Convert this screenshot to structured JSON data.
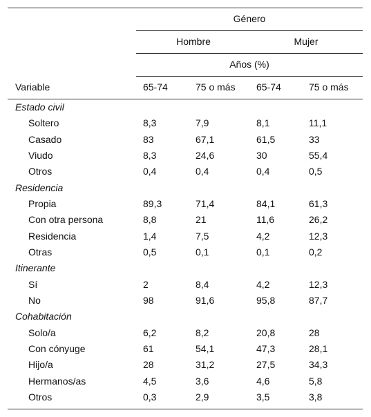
{
  "header": {
    "title": "Género",
    "groups": [
      "Hombre",
      "Mujer"
    ],
    "subtitle": "Años (%)",
    "columns": [
      "Variable",
      "65-74",
      "75 o más",
      "65-74",
      "75 o más"
    ]
  },
  "table": {
    "sections": [
      {
        "label": "Estado civil",
        "rows": [
          {
            "label": "Soltero",
            "values": [
              "8,3",
              "7,9",
              "8,1",
              "11,1"
            ]
          },
          {
            "label": "Casado",
            "values": [
              "83",
              "67,1",
              "61,5",
              "33"
            ]
          },
          {
            "label": "Viudo",
            "values": [
              "8,3",
              "24,6",
              "30",
              "55,4"
            ]
          },
          {
            "label": "Otros",
            "values": [
              "0,4",
              "0,4",
              "0,4",
              "0,5"
            ]
          }
        ]
      },
      {
        "label": "Residencia",
        "rows": [
          {
            "label": "Propia",
            "values": [
              "89,3",
              "71,4",
              "84,1",
              "61,3"
            ]
          },
          {
            "label": "Con otra persona",
            "values": [
              "8,8",
              "21",
              "11,6",
              "26,2"
            ]
          },
          {
            "label": "Residencia",
            "values": [
              "1,4",
              "7,5",
              "4,2",
              "12,3"
            ]
          },
          {
            "label": "Otras",
            "values": [
              "0,5",
              "0,1",
              "0,1",
              "0,2"
            ]
          }
        ]
      },
      {
        "label": "Itinerante",
        "rows": [
          {
            "label": "Sí",
            "values": [
              "2",
              "8,4",
              "4,2",
              "12,3"
            ]
          },
          {
            "label": "No",
            "values": [
              "98",
              "91,6",
              "95,8",
              "87,7"
            ]
          }
        ]
      },
      {
        "label": "Cohabitación",
        "rows": [
          {
            "label": "Solo/a",
            "values": [
              "6,2",
              "8,2",
              "20,8",
              "28"
            ]
          },
          {
            "label": "Con cónyuge",
            "values": [
              "61",
              "54,1",
              "47,3",
              "28,1"
            ]
          },
          {
            "label": "Hijo/a",
            "values": [
              "28",
              "31,2",
              "27,5",
              "34,3"
            ]
          },
          {
            "label": "Hermanos/as",
            "values": [
              "4,5",
              "3,6",
              "4,6",
              "5,8"
            ]
          },
          {
            "label": "Otros",
            "values": [
              "0,3",
              "2,9",
              "3,5",
              "3,8"
            ]
          }
        ]
      }
    ]
  }
}
